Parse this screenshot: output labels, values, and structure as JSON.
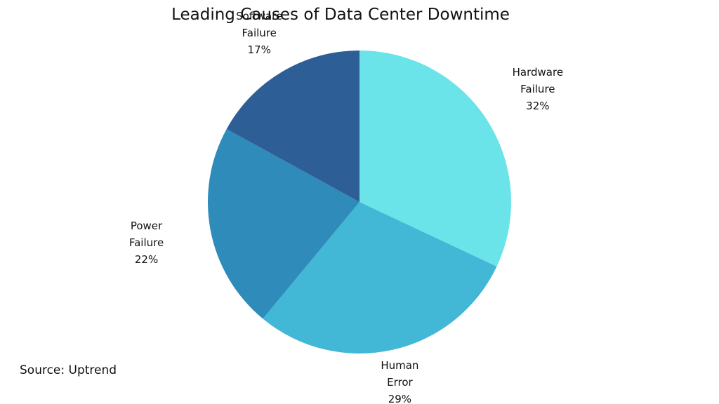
{
  "chart_data": {
    "type": "pie",
    "title": "Leading Causes of Data Center Downtime",
    "categories": [
      "Hardware Failure",
      "Human Error",
      "Power Failure",
      "Software Failure"
    ],
    "values": [
      32,
      29,
      22,
      17
    ],
    "value_labels": [
      "32%",
      "29%",
      "22%",
      "17%"
    ],
    "colors": [
      "#6ae4e9",
      "#42b7d6",
      "#2e8bba",
      "#2e5e96"
    ],
    "source": "Source: Uptrend"
  }
}
